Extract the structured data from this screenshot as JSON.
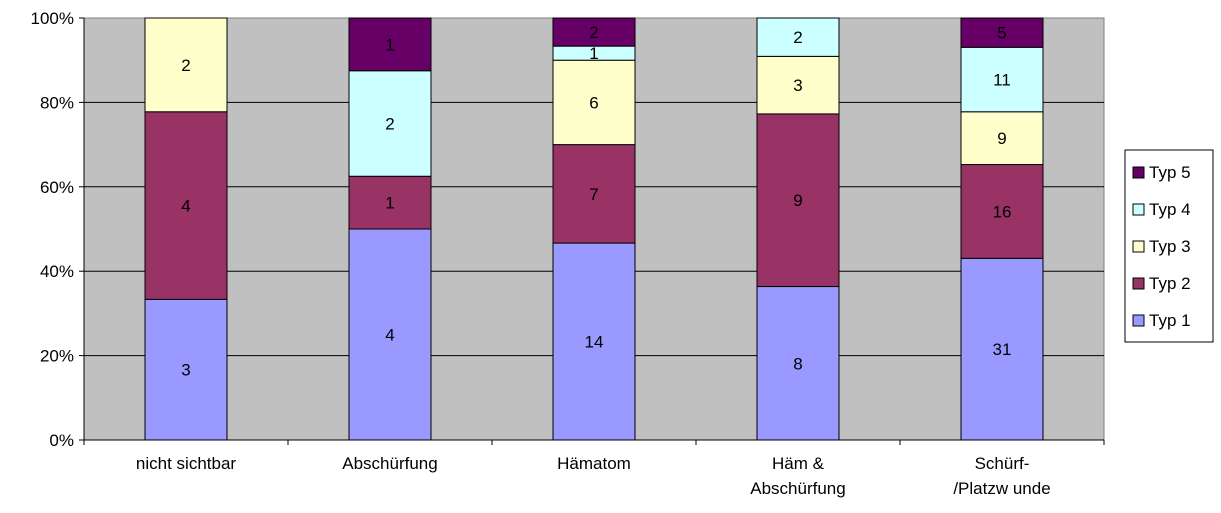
{
  "chart_data": {
    "type": "bar",
    "stacked": true,
    "percent_stacked": true,
    "categories": [
      [
        "nicht sichtbar"
      ],
      [
        "Abschürfung"
      ],
      [
        "Hämatom"
      ],
      [
        "Häm &",
        "Abschürfung"
      ],
      [
        "Schürf-",
        "/Platzw unde"
      ]
    ],
    "series": [
      {
        "name": "Typ 1",
        "color": "#9999ff",
        "values": [
          3,
          4,
          14,
          8,
          31
        ]
      },
      {
        "name": "Typ 2",
        "color": "#993366",
        "values": [
          4,
          1,
          7,
          9,
          16
        ]
      },
      {
        "name": "Typ 3",
        "color": "#ffffcc",
        "values": [
          2,
          0,
          6,
          3,
          9
        ]
      },
      {
        "name": "Typ 4",
        "color": "#ccffff",
        "values": [
          0,
          2,
          1,
          2,
          11
        ]
      },
      {
        "name": "Typ 5",
        "color": "#660066",
        "values": [
          0,
          1,
          2,
          0,
          5
        ]
      }
    ],
    "yticks": [
      "0%",
      "20%",
      "40%",
      "60%",
      "80%",
      "100%"
    ],
    "ylim": [
      0,
      100
    ],
    "plot_background": "#c0c0c0",
    "grid": true,
    "legend_position": "right",
    "legend_order": [
      "Typ 5",
      "Typ 4",
      "Typ 3",
      "Typ 2",
      "Typ 1"
    ]
  }
}
